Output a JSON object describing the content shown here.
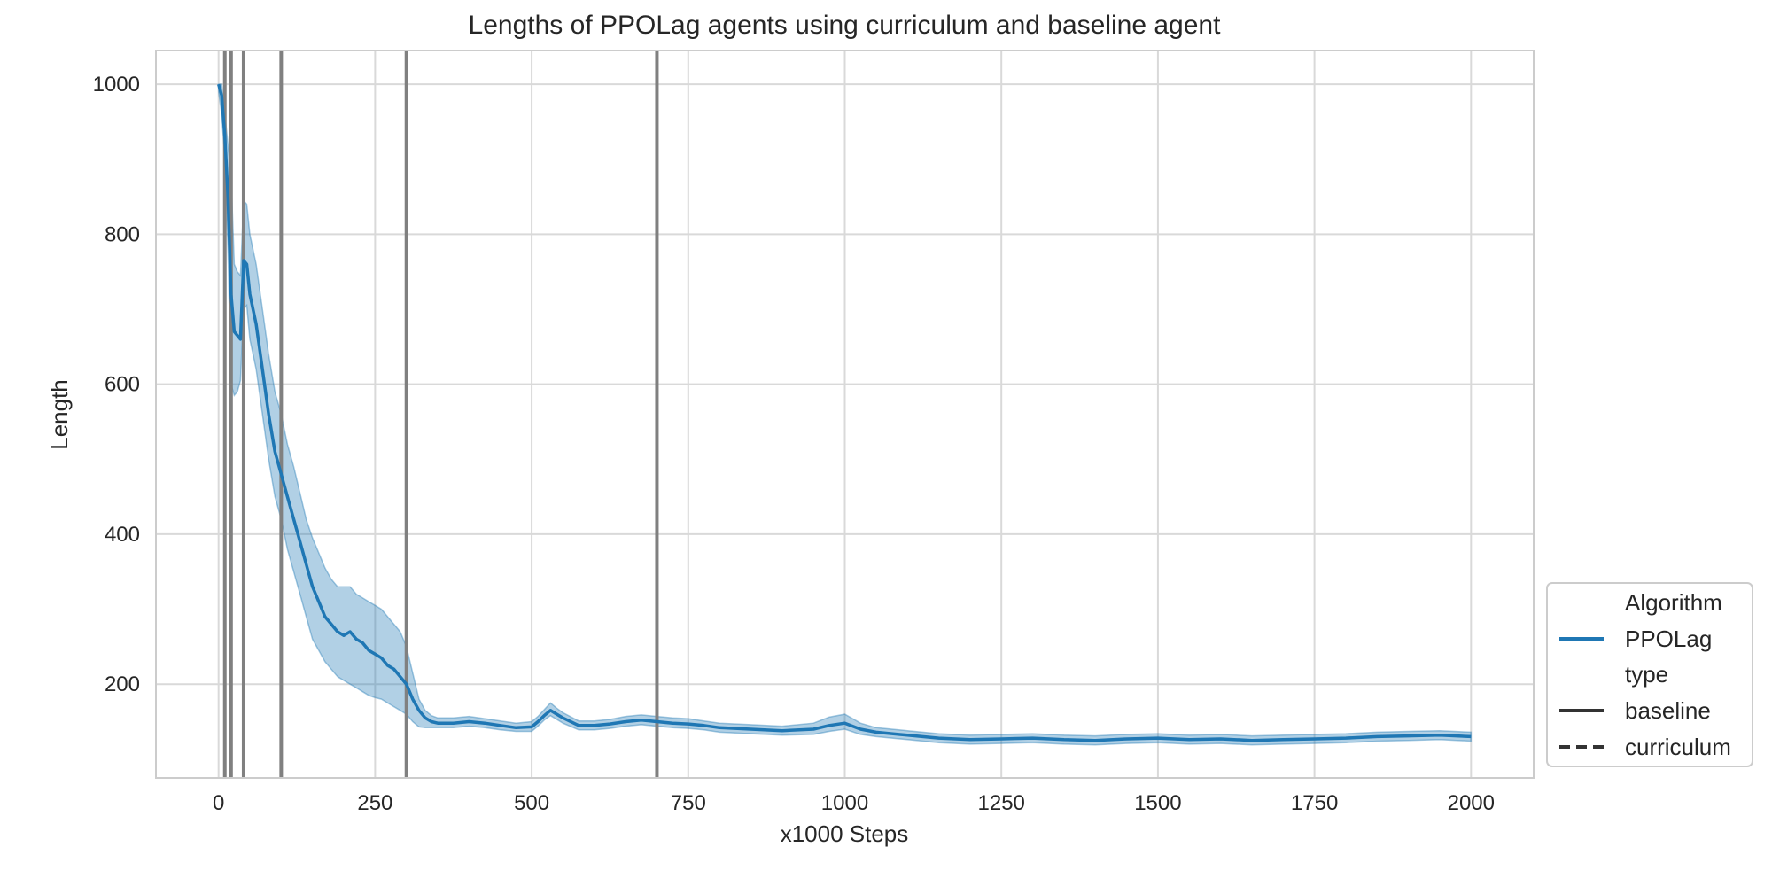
{
  "chart_data": {
    "type": "line",
    "title": "Lengths of PPOLag agents using curriculum and baseline agent",
    "xlabel": "x1000 Steps",
    "ylabel": "Length",
    "xlim": [
      -100,
      2100
    ],
    "ylim": [
      75,
      1045
    ],
    "xticks": [
      0,
      250,
      500,
      750,
      1000,
      1250,
      1500,
      1750,
      2000
    ],
    "yticks": [
      200,
      400,
      600,
      800,
      1000
    ],
    "grid": true,
    "vlines": [
      10,
      20,
      40,
      100,
      300,
      700
    ],
    "vline_color": "#808080",
    "legend": {
      "placement": "right, outside, lower",
      "entries": [
        {
          "label": "Algorithm",
          "kind": "header"
        },
        {
          "label": "PPOLag",
          "kind": "line",
          "style": "solid",
          "color": "#1f77b4"
        },
        {
          "label": "type",
          "kind": "header"
        },
        {
          "label": "baseline",
          "kind": "line",
          "style": "solid",
          "color": "#333333"
        },
        {
          "label": "curriculum",
          "kind": "line",
          "style": "dashed",
          "color": "#333333"
        }
      ]
    },
    "series": [
      {
        "name": "PPOLag",
        "type_name": "baseline",
        "color": "#1f77b4",
        "band_color": "#1f77b4",
        "x": [
          0,
          5,
          10,
          15,
          20,
          25,
          30,
          35,
          40,
          45,
          50,
          60,
          70,
          80,
          90,
          100,
          110,
          120,
          130,
          140,
          150,
          160,
          170,
          180,
          190,
          200,
          210,
          220,
          230,
          240,
          250,
          260,
          270,
          280,
          290,
          300,
          310,
          320,
          330,
          340,
          350,
          375,
          400,
          425,
          450,
          475,
          500,
          510,
          520,
          530,
          540,
          550,
          575,
          600,
          625,
          650,
          675,
          700,
          725,
          750,
          775,
          800,
          850,
          900,
          950,
          975,
          1000,
          1025,
          1050,
          1100,
          1150,
          1200,
          1250,
          1300,
          1350,
          1400,
          1450,
          1500,
          1550,
          1600,
          1650,
          1700,
          1750,
          1800,
          1850,
          1900,
          1950,
          2000
        ],
        "y": [
          1000,
          985,
          930,
          850,
          720,
          670,
          665,
          660,
          765,
          760,
          720,
          680,
          620,
          560,
          510,
          480,
          450,
          420,
          390,
          360,
          330,
          310,
          290,
          280,
          270,
          265,
          270,
          260,
          255,
          245,
          240,
          235,
          225,
          220,
          210,
          200,
          180,
          165,
          155,
          150,
          148,
          148,
          150,
          148,
          145,
          142,
          143,
          150,
          158,
          165,
          160,
          155,
          145,
          145,
          147,
          150,
          152,
          150,
          148,
          147,
          145,
          142,
          140,
          138,
          140,
          145,
          148,
          140,
          136,
          132,
          128,
          126,
          127,
          128,
          126,
          125,
          127,
          128,
          126,
          127,
          125,
          126,
          127,
          128,
          130,
          131,
          132,
          130
        ],
        "lower": [
          990,
          960,
          900,
          780,
          600,
          585,
          590,
          605,
          700,
          705,
          660,
          620,
          560,
          500,
          450,
          420,
          380,
          350,
          320,
          290,
          260,
          245,
          230,
          220,
          210,
          205,
          200,
          195,
          190,
          185,
          182,
          180,
          175,
          170,
          165,
          160,
          150,
          143,
          142,
          142,
          142,
          142,
          144,
          142,
          139,
          137,
          137,
          144,
          152,
          158,
          153,
          148,
          139,
          139,
          141,
          144,
          146,
          144,
          142,
          141,
          139,
          136,
          134,
          132,
          133,
          137,
          140,
          133,
          130,
          126,
          122,
          120,
          121,
          122,
          120,
          119,
          121,
          122,
          120,
          121,
          119,
          120,
          121,
          122,
          124,
          125,
          126,
          124
        ],
        "upper": [
          1000,
          1000,
          960,
          920,
          880,
          760,
          750,
          745,
          845,
          840,
          800,
          760,
          700,
          640,
          590,
          560,
          520,
          490,
          455,
          420,
          395,
          375,
          355,
          340,
          330,
          330,
          330,
          320,
          315,
          310,
          305,
          300,
          290,
          280,
          270,
          250,
          215,
          180,
          165,
          158,
          155,
          155,
          157,
          154,
          151,
          148,
          150,
          157,
          166,
          175,
          168,
          162,
          151,
          151,
          153,
          157,
          159,
          157,
          155,
          154,
          151,
          148,
          146,
          144,
          148,
          156,
          160,
          148,
          142,
          138,
          134,
          132,
          133,
          134,
          132,
          131,
          133,
          134,
          132,
          133,
          131,
          132,
          133,
          134,
          136,
          137,
          138,
          136
        ]
      }
    ]
  }
}
